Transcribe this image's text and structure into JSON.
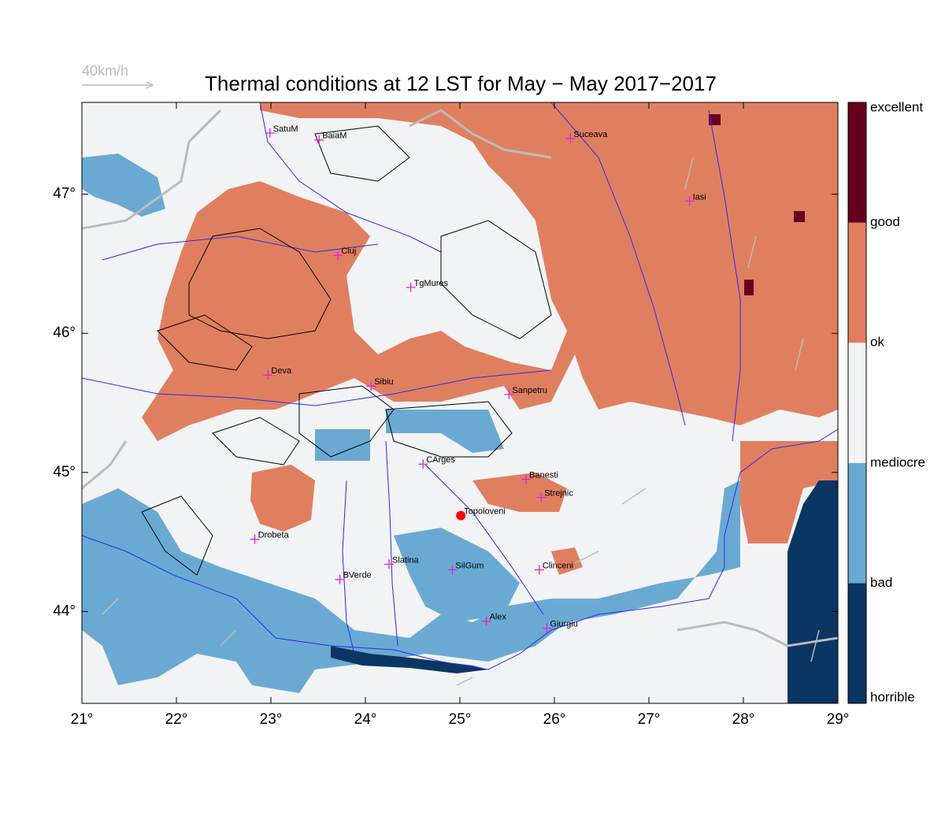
{
  "title": "Thermal conditions at 12 LST for May − May  2017−2017",
  "wind_scale": "40km/h",
  "map": {
    "xlim": [
      21,
      29
    ],
    "ylim": [
      43.34,
      47.66
    ],
    "xticks": [
      {
        "value": 21,
        "label": "21°"
      },
      {
        "value": 22,
        "label": "22°"
      },
      {
        "value": 23,
        "label": "23°"
      },
      {
        "value": 24,
        "label": "24°"
      },
      {
        "value": 25,
        "label": "25°"
      },
      {
        "value": 26,
        "label": "26°"
      },
      {
        "value": 27,
        "label": "27°"
      },
      {
        "value": 28,
        "label": "28°"
      },
      {
        "value": 29,
        "label": "29°"
      }
    ],
    "yticks": [
      {
        "value": 44,
        "label": "44°"
      },
      {
        "value": 45,
        "label": "45°"
      },
      {
        "value": 46,
        "label": "46°"
      },
      {
        "value": 47,
        "label": "47°"
      }
    ],
    "legend": {
      "labels": [
        "horrible",
        "bad",
        "mediocre",
        "ok",
        "good",
        "excellent"
      ],
      "colors": [
        "#0b3563",
        "#6aaad2",
        "#f2f3f5",
        "#e07f5f",
        "#67001f"
      ]
    },
    "cities": [
      {
        "name": "SatuM",
        "lon": 22.99,
        "lat": 47.44,
        "symbol": "cross"
      },
      {
        "name": "BaiaM",
        "lon": 23.51,
        "lat": 47.39,
        "symbol": "cross"
      },
      {
        "name": "Suceava",
        "lon": 26.17,
        "lat": 47.4,
        "symbol": "cross"
      },
      {
        "name": "Iasi",
        "lon": 27.43,
        "lat": 46.95,
        "symbol": "cross"
      },
      {
        "name": "Cluj",
        "lon": 23.71,
        "lat": 46.56,
        "symbol": "cross"
      },
      {
        "name": "TgMures",
        "lon": 24.48,
        "lat": 46.33,
        "symbol": "cross"
      },
      {
        "name": "Deva",
        "lon": 22.97,
        "lat": 45.7,
        "symbol": "cross"
      },
      {
        "name": "Sibiu",
        "lon": 24.06,
        "lat": 45.62,
        "symbol": "cross"
      },
      {
        "name": "Sanpetru",
        "lon": 25.52,
        "lat": 45.56,
        "symbol": "cross"
      },
      {
        "name": "CArges",
        "lon": 24.61,
        "lat": 45.06,
        "symbol": "cross"
      },
      {
        "name": "Banesti",
        "lon": 25.7,
        "lat": 44.95,
        "symbol": "cross"
      },
      {
        "name": "Strejnic",
        "lon": 25.86,
        "lat": 44.82,
        "symbol": "cross"
      },
      {
        "name": "Topoloveni",
        "lon": 25.01,
        "lat": 44.69,
        "symbol": "dot"
      },
      {
        "name": "Drobeta",
        "lon": 22.83,
        "lat": 44.52,
        "symbol": "cross"
      },
      {
        "name": "Slatina",
        "lon": 24.25,
        "lat": 44.34,
        "symbol": "cross"
      },
      {
        "name": "SilGum",
        "lon": 24.92,
        "lat": 44.3,
        "symbol": "cross"
      },
      {
        "name": "Clinceni",
        "lon": 25.84,
        "lat": 44.3,
        "symbol": "cross"
      },
      {
        "name": "BVerde",
        "lon": 23.73,
        "lat": 44.23,
        "symbol": "cross"
      },
      {
        "name": "Alex",
        "lon": 25.28,
        "lat": 43.93,
        "symbol": "cross"
      },
      {
        "name": "Giurgiu",
        "lon": 25.92,
        "lat": 43.88,
        "symbol": "cross"
      }
    ]
  }
}
